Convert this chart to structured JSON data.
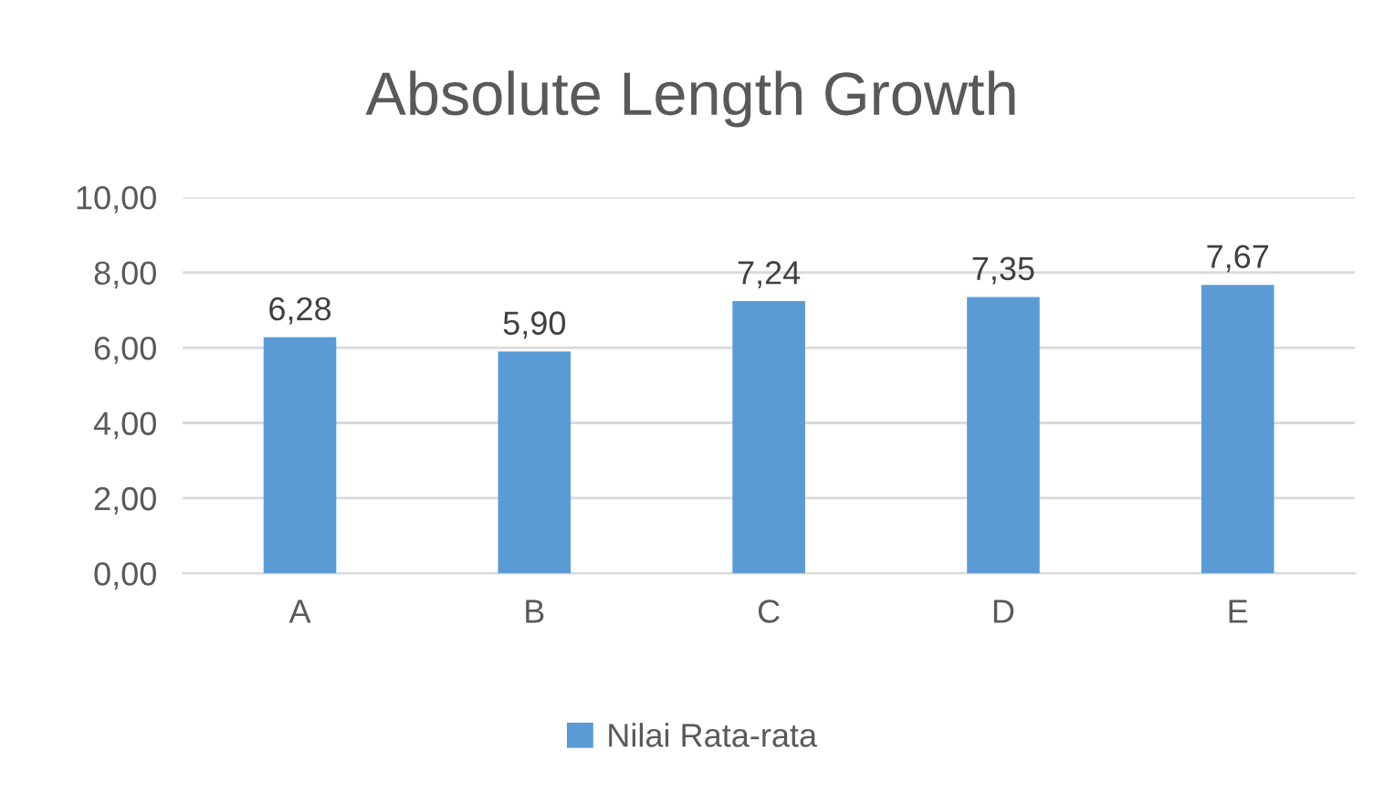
{
  "chart_data": {
    "type": "bar",
    "title": "Absolute Length Growth",
    "categories": [
      "A",
      "B",
      "C",
      "D",
      "E"
    ],
    "series": [
      {
        "name": "Nilai Rata-rata",
        "color": "#5b9bd5",
        "values": [
          6.28,
          5.9,
          7.24,
          7.35,
          7.67
        ],
        "value_labels": [
          "6,28",
          "5,90",
          "7,24",
          "7,35",
          "7,67"
        ]
      }
    ],
    "ylim": [
      0,
      10
    ],
    "yticks": [
      {
        "value": 0,
        "label": "0,00"
      },
      {
        "value": 2,
        "label": "2,00"
      },
      {
        "value": 4,
        "label": "4,00"
      },
      {
        "value": 6,
        "label": "6,00"
      },
      {
        "value": 8,
        "label": "8,00"
      },
      {
        "value": 10,
        "label": "10,00"
      }
    ],
    "grid": "y",
    "legend": "bottom"
  }
}
